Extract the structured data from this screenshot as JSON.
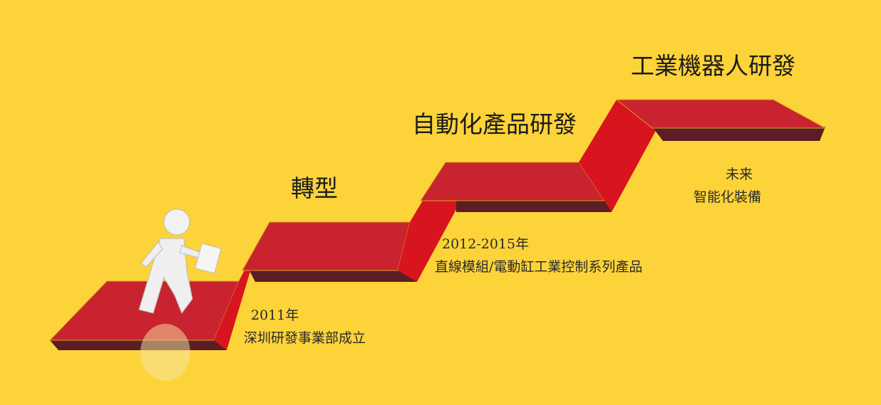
{
  "colors": {
    "background": "#FDD33A",
    "ribbon": "#C8232E",
    "ribbon_shadow": "#5A1E24",
    "ribbon_edge": "#E0101A"
  },
  "stages": [
    {
      "title": "",
      "year": "2011年",
      "desc": "深圳研發事業部成立"
    },
    {
      "title": "轉型",
      "year": "2012-2015年",
      "desc": "直線模組/電動缸工業控制系列產品"
    },
    {
      "title": "自動化產品研發",
      "year": "",
      "desc": ""
    },
    {
      "title": "工業機器人研發",
      "year": "未来",
      "desc": "智能化裝備"
    }
  ],
  "figure_icon": "walking-person-with-briefcase-icon"
}
